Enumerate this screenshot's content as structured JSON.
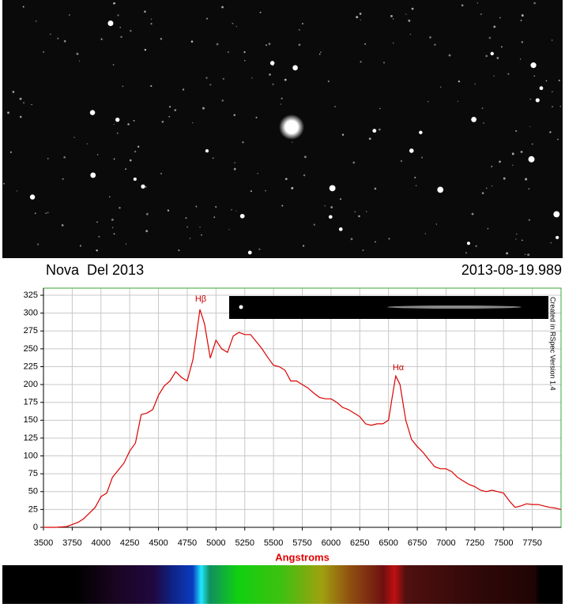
{
  "chart_data": {
    "type": "line",
    "title": "Nova  Del 2013",
    "subtitle": "2013-08-19.989",
    "x_label": "Angstroms",
    "annotations": [
      "Hβ",
      "Hα",
      "Created in RSpec Version 1.4"
    ],
    "x": [
      3500,
      3600,
      3700,
      3750,
      3800,
      3850,
      3900,
      3950,
      4000,
      4050,
      4100,
      4150,
      4200,
      4250,
      4300,
      4350,
      4400,
      4450,
      4500,
      4550,
      4600,
      4650,
      4700,
      4750,
      4800,
      4860,
      4900,
      4950,
      5000,
      5050,
      5100,
      5150,
      5200,
      5250,
      5300,
      5350,
      5400,
      5450,
      5500,
      5550,
      5600,
      5650,
      5700,
      5750,
      5800,
      5850,
      5900,
      5950,
      6000,
      6050,
      6100,
      6150,
      6200,
      6250,
      6300,
      6350,
      6400,
      6450,
      6500,
      6530,
      6563,
      6600,
      6650,
      6700,
      6750,
      6800,
      6850,
      6900,
      6950,
      7000,
      7050,
      7100,
      7150,
      7200,
      7250,
      7300,
      7350,
      7400,
      7450,
      7500,
      7550,
      7600,
      7650,
      7700,
      7750,
      7800,
      7850,
      7900,
      7950,
      8000
    ],
    "series": [
      {
        "name": "Nova Del 2013",
        "color": "#dd0000",
        "values": [
          0,
          0,
          1,
          4,
          7,
          12,
          20,
          28,
          43,
          48,
          70,
          80,
          90,
          107,
          118,
          158,
          160,
          165,
          185,
          198,
          205,
          218,
          210,
          205,
          235,
          305,
          285,
          237,
          262,
          250,
          245,
          268,
          273,
          270,
          270,
          260,
          250,
          238,
          227,
          225,
          220,
          205,
          205,
          200,
          195,
          188,
          182,
          180,
          180,
          175,
          168,
          165,
          160,
          155,
          145,
          143,
          145,
          145,
          150,
          180,
          212,
          200,
          150,
          123,
          113,
          105,
          95,
          85,
          82,
          82,
          78,
          70,
          65,
          60,
          57,
          52,
          50,
          52,
          50,
          48,
          37,
          28,
          30,
          33,
          32,
          32,
          30,
          28,
          27,
          25
        ]
      }
    ],
    "xlim": [
      3500,
      8000
    ],
    "ylim": [
      0,
      335
    ],
    "xticks": [
      3500,
      3750,
      4000,
      4250,
      4500,
      4750,
      5000,
      5250,
      5500,
      5750,
      6000,
      6250,
      6500,
      6750,
      7000,
      7250,
      7500,
      7750
    ],
    "yticks": [
      0,
      25,
      50,
      75,
      100,
      125,
      150,
      175,
      200,
      225,
      250,
      275,
      300,
      325
    ],
    "grid": true
  }
}
